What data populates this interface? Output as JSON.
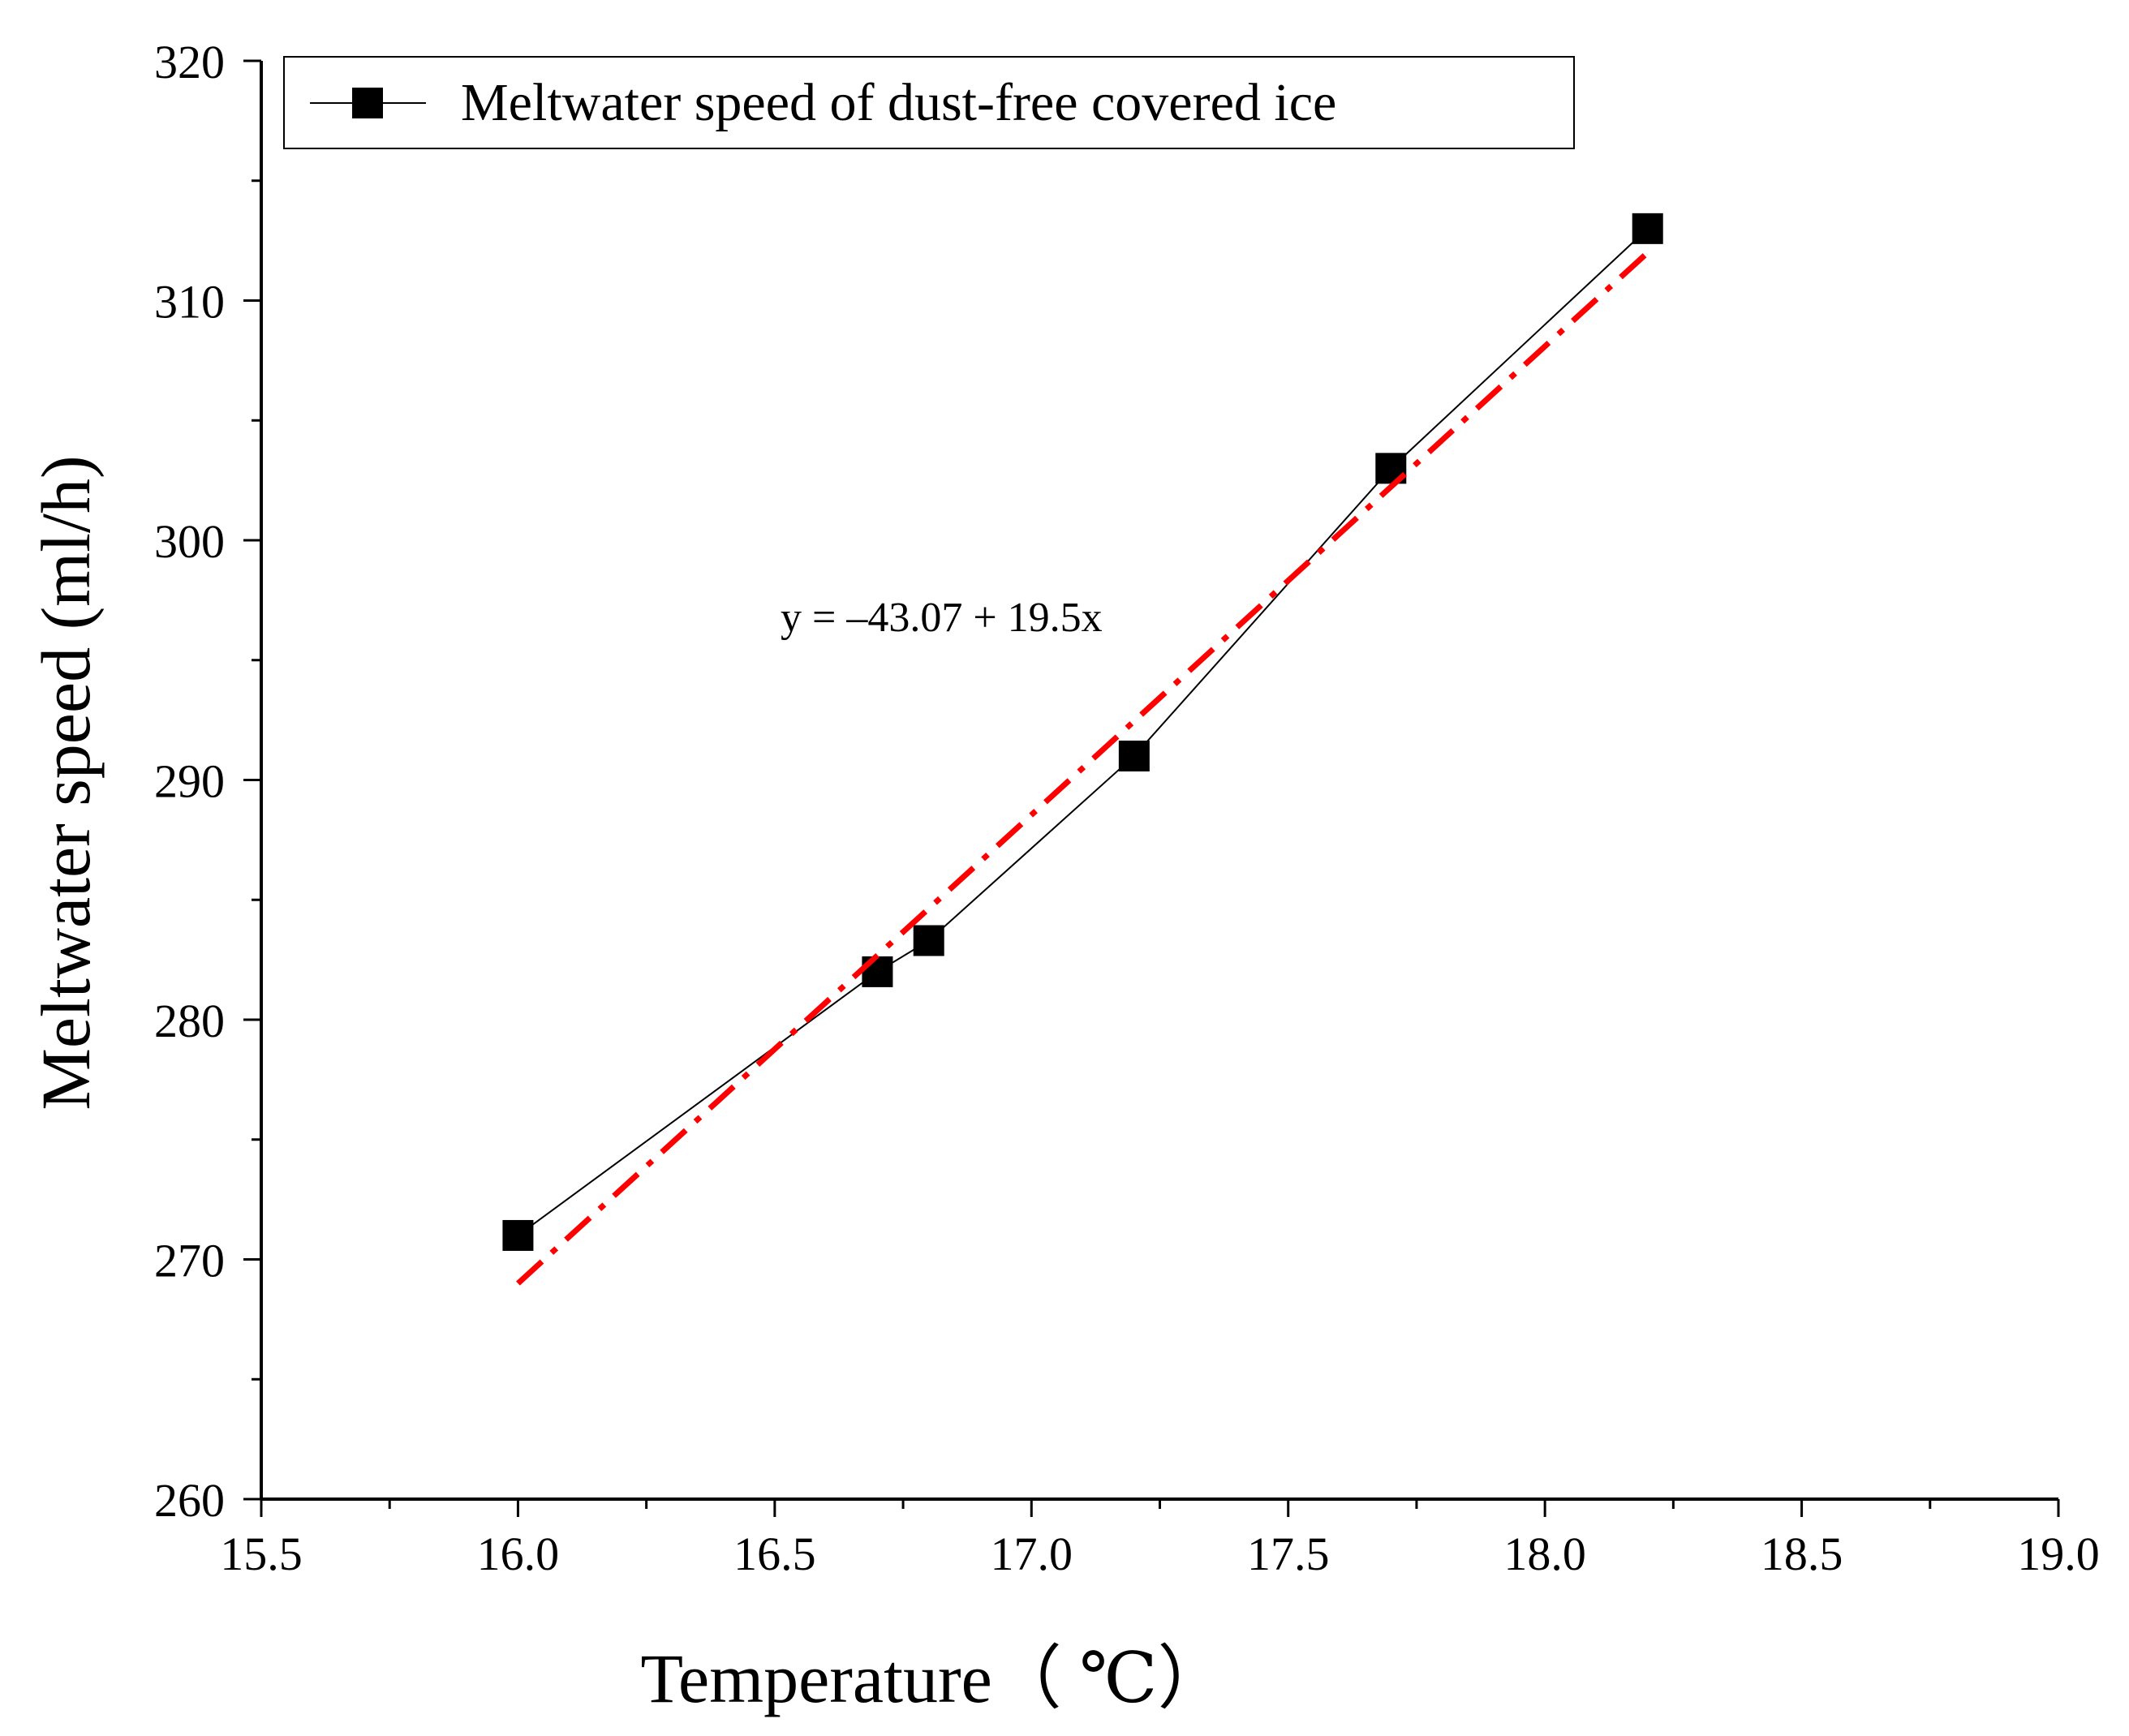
{
  "chart_data": {
    "type": "line",
    "xlabel": "Temperature（ ℃）",
    "ylabel": "Meltwater speed (ml/h)",
    "xlim": [
      15.5,
      19.0
    ],
    "ylim": [
      260,
      320
    ],
    "x_ticks": [
      "15.5",
      "16.0",
      "16.5",
      "17.0",
      "17.5",
      "18.0",
      "18.5",
      "19.0"
    ],
    "y_ticks": [
      "260",
      "270",
      "280",
      "290",
      "300",
      "310",
      "320"
    ],
    "grid": false,
    "legend_position": "top-left",
    "series": [
      {
        "name": "Meltwater speed of dust-free covered ice",
        "marker": "square",
        "color": "#000000",
        "x": [
          16.0,
          16.7,
          16.8,
          17.2,
          17.7,
          18.2
        ],
        "y": [
          271,
          282,
          283.3,
          291,
          303,
          313
        ]
      }
    ],
    "fit": {
      "equation": "y = –43.07 + 19.5x",
      "color": "#ff0000",
      "style": "dash-dot",
      "x": [
        16.0,
        18.2
      ],
      "y": [
        269.0,
        312.0
      ]
    }
  }
}
